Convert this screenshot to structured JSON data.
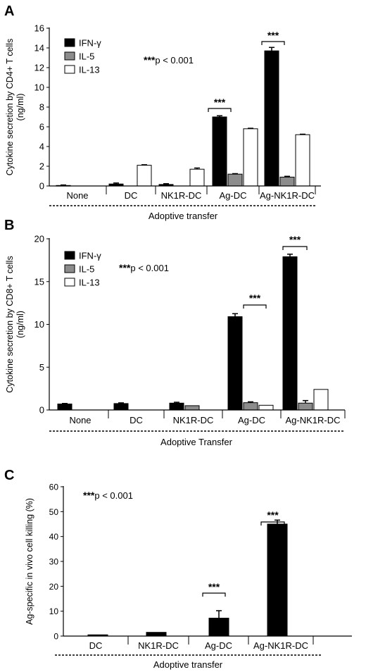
{
  "chart_data": [
    {
      "type": "bar",
      "panel_label": "A",
      "categories": [
        "None",
        "DC",
        "NK1R-DC",
        "Ag-DC",
        "Ag-NK1R-DC"
      ],
      "series": [
        {
          "name": "IFN-γ",
          "values": [
            0.05,
            0.2,
            0.15,
            7.0,
            13.7
          ],
          "errors": [
            0.05,
            0.1,
            0.08,
            0.12,
            0.35
          ]
        },
        {
          "name": "IL-5",
          "values": [
            0,
            0,
            0,
            1.2,
            0.9
          ],
          "errors": [
            0,
            0,
            0,
            0.05,
            0.08
          ]
        },
        {
          "name": "IL-13",
          "values": [
            0,
            2.1,
            1.7,
            5.8,
            5.2
          ],
          "errors": [
            0,
            0.05,
            0.12,
            0.05,
            0.05
          ]
        }
      ],
      "ylabel": "Cytokine secretion by CD4+ T cells (ng/ml)",
      "ylabel_lines": [
        "Cytokine secretion by CD4+ T cells",
        "(ng/ml)"
      ],
      "xlabel": "Adoptive transfer",
      "ylim": [
        0,
        16
      ],
      "yticks": [
        "0",
        "2",
        "4",
        "6",
        "8",
        "10",
        "12",
        "14",
        "16"
      ],
      "legend_position": "top-left",
      "annotation": {
        "stars": "***",
        "text": "p < 0.001"
      },
      "significance": [
        {
          "category": "Ag-DC",
          "label": "***"
        },
        {
          "category": "Ag-NK1R-DC",
          "label": "***"
        }
      ]
    },
    {
      "type": "bar",
      "panel_label": "B",
      "categories": [
        "None",
        "DC",
        "NK1R-DC",
        "Ag-DC",
        "Ag-NK1R-DC"
      ],
      "series": [
        {
          "name": "IFN-γ",
          "values": [
            0.7,
            0.75,
            0.8,
            10.9,
            17.9
          ],
          "errors": [
            0.06,
            0.08,
            0.1,
            0.35,
            0.3
          ]
        },
        {
          "name": "IL-5",
          "values": [
            0,
            0,
            0.5,
            0.85,
            0.8
          ],
          "errors": [
            0,
            0,
            0,
            0.1,
            0.3
          ]
        },
        {
          "name": "IL-13",
          "values": [
            0,
            0,
            0,
            0.55,
            2.4
          ],
          "errors": [
            0,
            0,
            0,
            0,
            0
          ]
        }
      ],
      "ylabel": "Cytokine secretion by CD8+ T cells (ng/ml)",
      "ylabel_lines": [
        "Cytokine secretion by CD8+ T cells",
        "(ng/ml)"
      ],
      "xlabel": "Adoptive Transfer",
      "ylim": [
        0,
        20
      ],
      "yticks": [
        "0",
        "5",
        "10",
        "15",
        "20"
      ],
      "legend_position": "top-left",
      "annotation": {
        "stars": "***",
        "text": "p < 0.001"
      },
      "significance": [
        {
          "category": "Ag-DC",
          "label": "***"
        },
        {
          "category": "Ag-NK1R-DC",
          "label": "***"
        }
      ]
    },
    {
      "type": "bar",
      "panel_label": "C",
      "categories": [
        "DC",
        "NK1R-DC",
        "Ag-DC",
        "Ag-NK1R-DC"
      ],
      "series": [
        {
          "name": "",
          "values": [
            0.5,
            1.5,
            7.2,
            45.0
          ],
          "errors": [
            0,
            0,
            3.0,
            1.6
          ]
        }
      ],
      "ylabel": "Ag-specific in vivo cell killing (%)",
      "ylabel_lines": [
        "Ag-specific in vivo cell killing (%)"
      ],
      "xlabel": "Adoptive transfer",
      "ylim": [
        0,
        60
      ],
      "yticks": [
        "0",
        "10",
        "20",
        "30",
        "40",
        "50",
        "60"
      ],
      "annotation": {
        "stars": "***",
        "text": "p < 0.001"
      },
      "significance": [
        {
          "category": "Ag-DC",
          "label": "***"
        },
        {
          "category": "Ag-NK1R-DC",
          "label": "***"
        }
      ]
    }
  ],
  "colors": {
    "IFN-γ": "#000000",
    "IL-5": "#8c8c8c",
    "IL-13": "#ffffff",
    "single": "#000000",
    "axis": "#000000"
  }
}
